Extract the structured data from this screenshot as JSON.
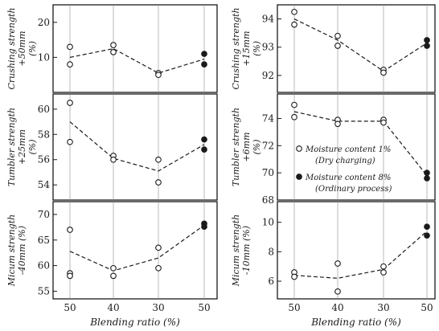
{
  "chart_data": [
    {
      "type": "scatter",
      "panel": "left-top",
      "ylabel": "Crushing strength +50mm (%)",
      "ylabel_lines": [
        "Crushing strength",
        "+50mm",
        "(%)"
      ],
      "yticks": [
        10,
        20
      ],
      "ylim": [
        0,
        25
      ],
      "x_categories": [
        "50",
        "40",
        "30",
        "50"
      ],
      "grid": "vertical",
      "dry_points": [
        [
          0,
          13
        ],
        [
          0,
          8
        ],
        [
          1,
          13.5
        ],
        [
          1,
          11.5
        ],
        [
          2,
          5.5
        ],
        [
          2,
          5
        ]
      ],
      "wet_points": [
        [
          3,
          11
        ],
        [
          3,
          8
        ]
      ],
      "trend": [
        [
          0,
          10
        ],
        [
          1,
          12.5
        ],
        [
          2,
          5.5
        ],
        [
          3,
          9.5
        ]
      ]
    },
    {
      "type": "scatter",
      "panel": "left-middle",
      "ylabel": "Tumbler strength +25mm (%)",
      "ylabel_lines": [
        "Tumbler strength",
        "+25mm",
        "(%)"
      ],
      "yticks": [
        54,
        56,
        58,
        60
      ],
      "ylim": [
        52.8,
        61.2
      ],
      "x_categories": [
        "50",
        "40",
        "30",
        "50"
      ],
      "grid": "vertical",
      "dry_points": [
        [
          0,
          60.5
        ],
        [
          0,
          57.4
        ],
        [
          1,
          56.3
        ],
        [
          1,
          56.0
        ],
        [
          2,
          56.0
        ],
        [
          2,
          54.2
        ]
      ],
      "wet_points": [
        [
          3,
          57.6
        ],
        [
          3,
          56.8
        ]
      ],
      "trend": [
        [
          0,
          59.0
        ],
        [
          1,
          56.1
        ],
        [
          2,
          55.1
        ],
        [
          3,
          57.2
        ]
      ]
    },
    {
      "type": "scatter",
      "panel": "left-bottom",
      "ylabel": "Micum strength -40mm (%)",
      "ylabel_lines": [
        "Micum strength",
        "-40mm (%)"
      ],
      "yticks": [
        55,
        60,
        65,
        70
      ],
      "ylim": [
        53.5,
        72.5
      ],
      "x_categories": [
        "50",
        "40",
        "30",
        "50"
      ],
      "xlabel": "Blending ratio (%)",
      "grid": "vertical",
      "dry_points": [
        [
          0,
          67
        ],
        [
          0,
          58.5
        ],
        [
          0,
          58
        ],
        [
          1,
          59.5
        ],
        [
          1,
          58
        ],
        [
          2,
          63.5
        ],
        [
          2,
          59.5
        ]
      ],
      "wet_points": [
        [
          3,
          68.2
        ],
        [
          3,
          67.6
        ]
      ],
      "trend": [
        [
          0,
          62.8
        ],
        [
          1,
          59
        ],
        [
          2,
          61.5
        ],
        [
          3,
          67.9
        ]
      ]
    },
    {
      "type": "scatter",
      "panel": "right-top",
      "ylabel": "Crushing strength +15mm (%)",
      "ylabel_lines": [
        "Crushing strength",
        "+15mm",
        "(%)"
      ],
      "yticks": [
        92,
        93,
        94
      ],
      "ylim": [
        91.4,
        94.5
      ],
      "x_categories": [
        "50",
        "40",
        "30",
        "50"
      ],
      "grid": "vertical",
      "dry_points": [
        [
          0,
          94.25
        ],
        [
          0,
          93.8
        ],
        [
          1,
          93.4
        ],
        [
          1,
          93.05
        ],
        [
          2,
          92.2
        ],
        [
          2,
          92.1
        ]
      ],
      "wet_points": [
        [
          3,
          93.25
        ],
        [
          3,
          93.05
        ]
      ],
      "trend": [
        [
          0,
          94.0
        ],
        [
          1,
          93.25
        ],
        [
          2,
          92.15
        ],
        [
          3,
          93.15
        ]
      ]
    },
    {
      "type": "scatter",
      "panel": "right-middle",
      "ylabel": "Tumbler strength +6mm (%)",
      "ylabel_lines": [
        "Tumbler strength",
        "+6mm",
        "(%)"
      ],
      "yticks": [
        68,
        70,
        72,
        74
      ],
      "ylim": [
        68,
        75.8
      ],
      "x_categories": [
        "50",
        "40",
        "30",
        "50"
      ],
      "grid": "vertical",
      "dry_points": [
        [
          0,
          75.0
        ],
        [
          0,
          74.1
        ],
        [
          1,
          73.9
        ],
        [
          1,
          73.6
        ],
        [
          2,
          73.9
        ],
        [
          2,
          73.7
        ]
      ],
      "wet_points": [
        [
          3,
          70.0
        ],
        [
          3,
          69.6
        ]
      ],
      "trend": [
        [
          0,
          74.5
        ],
        [
          1,
          73.8
        ],
        [
          2,
          73.8
        ],
        [
          3,
          69.8
        ]
      ]
    },
    {
      "type": "scatter",
      "panel": "right-bottom",
      "ylabel": "Micum strength -10mm (%)",
      "ylabel_lines": [
        "Micum strength",
        "-10mm (%)"
      ],
      "yticks": [
        6,
        8,
        10
      ],
      "ylim": [
        4.8,
        11.4
      ],
      "x_categories": [
        "50",
        "40",
        "30",
        "50"
      ],
      "xlabel": "Blending ratio (%)",
      "grid": "vertical",
      "dry_points": [
        [
          0,
          6.6
        ],
        [
          0,
          6.3
        ],
        [
          1,
          7.2
        ],
        [
          1,
          5.3
        ],
        [
          2,
          7.0
        ],
        [
          2,
          6.6
        ]
      ],
      "wet_points": [
        [
          3,
          9.7
        ],
        [
          3,
          9.1
        ]
      ],
      "trend": [
        [
          0,
          6.4
        ],
        [
          1,
          6.2
        ],
        [
          2,
          6.8
        ],
        [
          3,
          9.4
        ]
      ]
    }
  ],
  "legend": {
    "placement": "right-middle panel",
    "items": [
      {
        "marker": "open-circle",
        "label": "Moisture content 1%",
        "sublabel": "(Dry charging)"
      },
      {
        "marker": "filled-circle",
        "label": "Moisture content 8%",
        "sublabel": "(Ordinary process)"
      }
    ]
  }
}
